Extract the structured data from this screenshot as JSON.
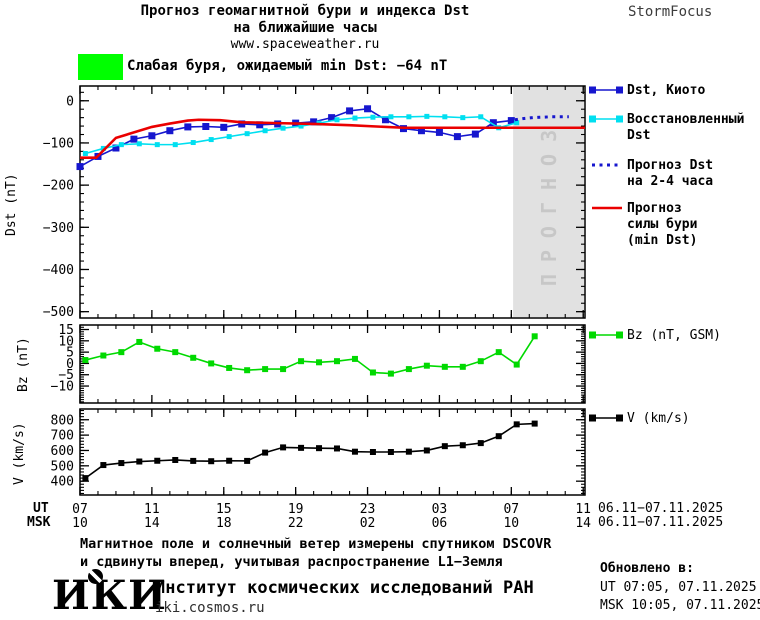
{
  "header": {
    "title_line1": "Прогноз геомагнитной бури и индекса Dst",
    "title_line2": "на ближайшие часы",
    "title_line3": "www.spaceweather.ru",
    "brand": "StormFocus"
  },
  "alert": {
    "label": "Слабая буря, ожидаемый min Dst: −64 nT",
    "swatch_color": "#00FF00"
  },
  "forecast_overlay": {
    "label": "ПРОГНОЗ",
    "fill": "#E1E1E1",
    "text_color": "#C7C7C7",
    "start_hour": 31.1
  },
  "legend": {
    "dst_items": [
      {
        "lines": [
          "Dst, Киото",
          ""
        ],
        "color": "#1616CE",
        "style": "line-squares"
      },
      {
        "lines": [
          "Восстановленный",
          "Dst"
        ],
        "color": "#00DFF0",
        "style": "line-squares"
      },
      {
        "lines": [
          "Прогноз Dst",
          "на 2-4 часа"
        ],
        "color": "#1616CE",
        "style": "dotted"
      },
      {
        "lines": [
          "Прогноз",
          "силы бури",
          "(min Dst)"
        ],
        "color": "#EA0000",
        "style": "line"
      }
    ],
    "bz": {
      "label": "Bz (nT, GSM)",
      "color": "#00D900"
    },
    "v": {
      "label": "V (km/s)",
      "color": "#000000"
    }
  },
  "xaxis": {
    "ut_label": "UT",
    "msk_label": "MSK",
    "tick_hours": [
      7,
      11,
      15,
      19,
      23,
      27,
      31,
      35
    ],
    "ut_values": [
      "07",
      "11",
      "15",
      "19",
      "23",
      "03",
      "07",
      "11"
    ],
    "msk_values": [
      "10",
      "14",
      "18",
      "22",
      "02",
      "06",
      "10",
      "14"
    ],
    "ut_date": "06.11−07.11.2025",
    "msk_date": "06.11−07.11.2025",
    "xlim": [
      7,
      35.1
    ],
    "minor_step": 1
  },
  "chart_data": [
    {
      "type": "line",
      "panel": "dst",
      "ylabel": "Dst (nT)",
      "ylim": [
        -515,
        35
      ],
      "yticks": [
        0,
        -100,
        -200,
        -300,
        -400,
        -500
      ],
      "ytick_labels": [
        "0",
        "−100",
        "−200",
        "−300",
        "−400",
        "−500"
      ],
      "minor_y": 20,
      "has_forecast_region": true,
      "series": [
        {
          "name": "Dst, Киото",
          "color": "#1616CE",
          "style": "line",
          "line_width": 1.6,
          "marker": true,
          "marker_size": 7,
          "x": [
            7,
            8,
            9,
            10,
            11,
            12,
            13,
            14,
            15,
            16,
            17,
            18,
            19,
            20,
            21,
            22,
            23,
            24,
            25,
            26,
            27,
            28,
            29,
            30,
            31
          ],
          "values": [
            -156,
            -132,
            -112,
            -91,
            -83,
            -71,
            -62,
            -61,
            -63,
            -55,
            -57,
            -55,
            -53,
            -50,
            -40,
            -24,
            -19,
            -45,
            -66,
            -71,
            -75,
            -85,
            -79,
            -52,
            -47
          ]
        },
        {
          "name": "Восстановленный Dst",
          "color": "#00DFF0",
          "style": "line",
          "line_width": 1.6,
          "marker": true,
          "marker_size": 5,
          "x": [
            7.3,
            8.3,
            9.3,
            10.3,
            11.3,
            12.3,
            13.3,
            14.3,
            15.3,
            16.3,
            17.3,
            18.3,
            19.3,
            20.3,
            21.3,
            22.3,
            23.3,
            24.3,
            25.3,
            26.3,
            27.3,
            28.3,
            29.3,
            30.3,
            31.3
          ],
          "values": [
            -125,
            -113,
            -104,
            -102,
            -104,
            -104,
            -99,
            -92,
            -85,
            -78,
            -71,
            -65,
            -60,
            -53,
            -45,
            -41,
            -39,
            -38,
            -38,
            -37,
            -38,
            -40,
            -38,
            -64,
            -52
          ]
        },
        {
          "name": "Прогноз Dst на 2-4 часа",
          "color": "#1616CE",
          "style": "dotted",
          "line_width": 3,
          "marker": false,
          "x": [
            31.2,
            31.7,
            32.2,
            32.7,
            33.2,
            33.7,
            34.2
          ],
          "values": [
            -45,
            -42,
            -40,
            -39,
            -38,
            -38,
            -38
          ]
        },
        {
          "name": "Прогноз силы бури (min Dst)",
          "color": "#EA0000",
          "style": "line",
          "line_width": 2.6,
          "marker": false,
          "x": [
            7,
            7.9,
            9,
            10,
            11,
            12,
            13,
            13.6,
            14.8,
            16,
            18,
            20,
            22,
            23.5,
            25,
            35.1
          ],
          "values": [
            -135,
            -135,
            -88,
            -75,
            -62,
            -54,
            -47,
            -45,
            -46,
            -51,
            -53,
            -55,
            -58,
            -61,
            -64,
            -64
          ]
        }
      ]
    },
    {
      "type": "line",
      "panel": "bz",
      "ylabel": "Bz (nT)",
      "ylim": [
        -17.5,
        17
      ],
      "yticks": [
        15,
        10,
        5,
        0,
        -5,
        -10
      ],
      "ytick_labels": [
        "15",
        "10",
        "5",
        "0",
        "−5",
        "−10"
      ],
      "minor_y": 1,
      "has_forecast_region": false,
      "series": [
        {
          "name": "Bz (nT, GSM)",
          "color": "#00D900",
          "style": "line",
          "line_width": 1.6,
          "marker": true,
          "marker_size": 6,
          "x": [
            7.3,
            8.3,
            9.3,
            10.3,
            11.3,
            12.3,
            13.3,
            14.3,
            15.3,
            16.3,
            17.3,
            18.3,
            19.3,
            20.3,
            21.3,
            22.3,
            23.3,
            24.3,
            25.3,
            26.3,
            27.3,
            28.3,
            29.3,
            30.3,
            31.3,
            32.3
          ],
          "values": [
            1.5,
            3.5,
            5,
            9.5,
            6.5,
            5,
            2.5,
            0,
            -2,
            -3,
            -2.5,
            -2.5,
            1,
            0.5,
            1,
            2,
            -4,
            -4.5,
            -2.5,
            -1,
            -1.5,
            -1.5,
            1,
            5,
            -0.5,
            12
          ]
        }
      ]
    },
    {
      "type": "line",
      "panel": "v",
      "ylabel": "V (km/s)",
      "ylim": [
        310,
        870
      ],
      "yticks": [
        800,
        700,
        600,
        500,
        400
      ],
      "ytick_labels": [
        "800",
        "700",
        "600",
        "500",
        "400"
      ],
      "minor_y": 20,
      "has_forecast_region": false,
      "series": [
        {
          "name": "V (km/s)",
          "color": "#000000",
          "style": "line",
          "line_width": 1.6,
          "marker": true,
          "marker_size": 6,
          "x": [
            7.3,
            8.3,
            9.3,
            10.3,
            11.3,
            12.3,
            13.3,
            14.3,
            15.3,
            16.3,
            17.3,
            18.3,
            19.3,
            20.3,
            21.3,
            22.3,
            23.3,
            24.3,
            25.3,
            26.3,
            27.3,
            28.3,
            29.3,
            30.3,
            31.3,
            32.3
          ],
          "values": [
            420,
            505,
            518,
            528,
            533,
            538,
            532,
            530,
            533,
            532,
            586,
            620,
            617,
            615,
            613,
            592,
            590,
            590,
            592,
            600,
            628,
            634,
            648,
            693,
            770,
            775
          ]
        }
      ]
    }
  ],
  "footer": {
    "note_line1": "Магнитное поле и солнечный ветер измерены спутником DSCOVR",
    "note_line2": "и сдвинуты вперед, учитывая распространение L1−Земля",
    "updated_heading": "Обновлено в:",
    "updated_ut": "UT  07:05, 07.11.2025",
    "updated_msk": "MSK 10:05, 07.11.2025",
    "institute": "Институт космических исследований РАН",
    "site": "iki.cosmos.ru",
    "logo_text": "ИКИ"
  }
}
